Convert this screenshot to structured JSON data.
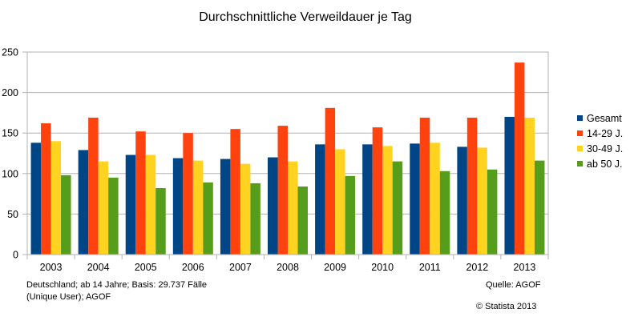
{
  "chart_data": {
    "type": "bar",
    "title": "Durchschnittliche Verweildauer je Tag",
    "categories": [
      "2003",
      "2004",
      "2005",
      "2006",
      "2007",
      "2008",
      "2009",
      "2010",
      "2011",
      "2012",
      "2013"
    ],
    "series": [
      {
        "name": "Gesamt",
        "color": "#004586",
        "values": [
          138,
          129,
          123,
          119,
          118,
          120,
          136,
          136,
          137,
          133,
          170
        ]
      },
      {
        "name": "14-29 J.",
        "color": "#ff420e",
        "values": [
          162,
          169,
          152,
          150,
          155,
          159,
          181,
          157,
          169,
          169,
          237
        ]
      },
      {
        "name": "30-49 J.",
        "color": "#ffd320",
        "values": [
          140,
          115,
          123,
          116,
          112,
          115,
          130,
          134,
          138,
          132,
          169
        ]
      },
      {
        "name": "ab 50 J.",
        "color": "#579d1c",
        "values": [
          98,
          95,
          82,
          89,
          88,
          84,
          97,
          115,
          103,
          105,
          116
        ]
      }
    ],
    "ylim": [
      0,
      250
    ],
    "yticks": [
      0,
      50,
      100,
      150,
      200,
      250
    ],
    "grid": true,
    "legend_position": "right"
  },
  "notes": {
    "sample": "Deutschland; ab 14 Jahre; Basis: 29.737 Fälle (Unique User); AGOF",
    "source": "Quelle: AGOF",
    "copyright": "© Statista 2013"
  }
}
